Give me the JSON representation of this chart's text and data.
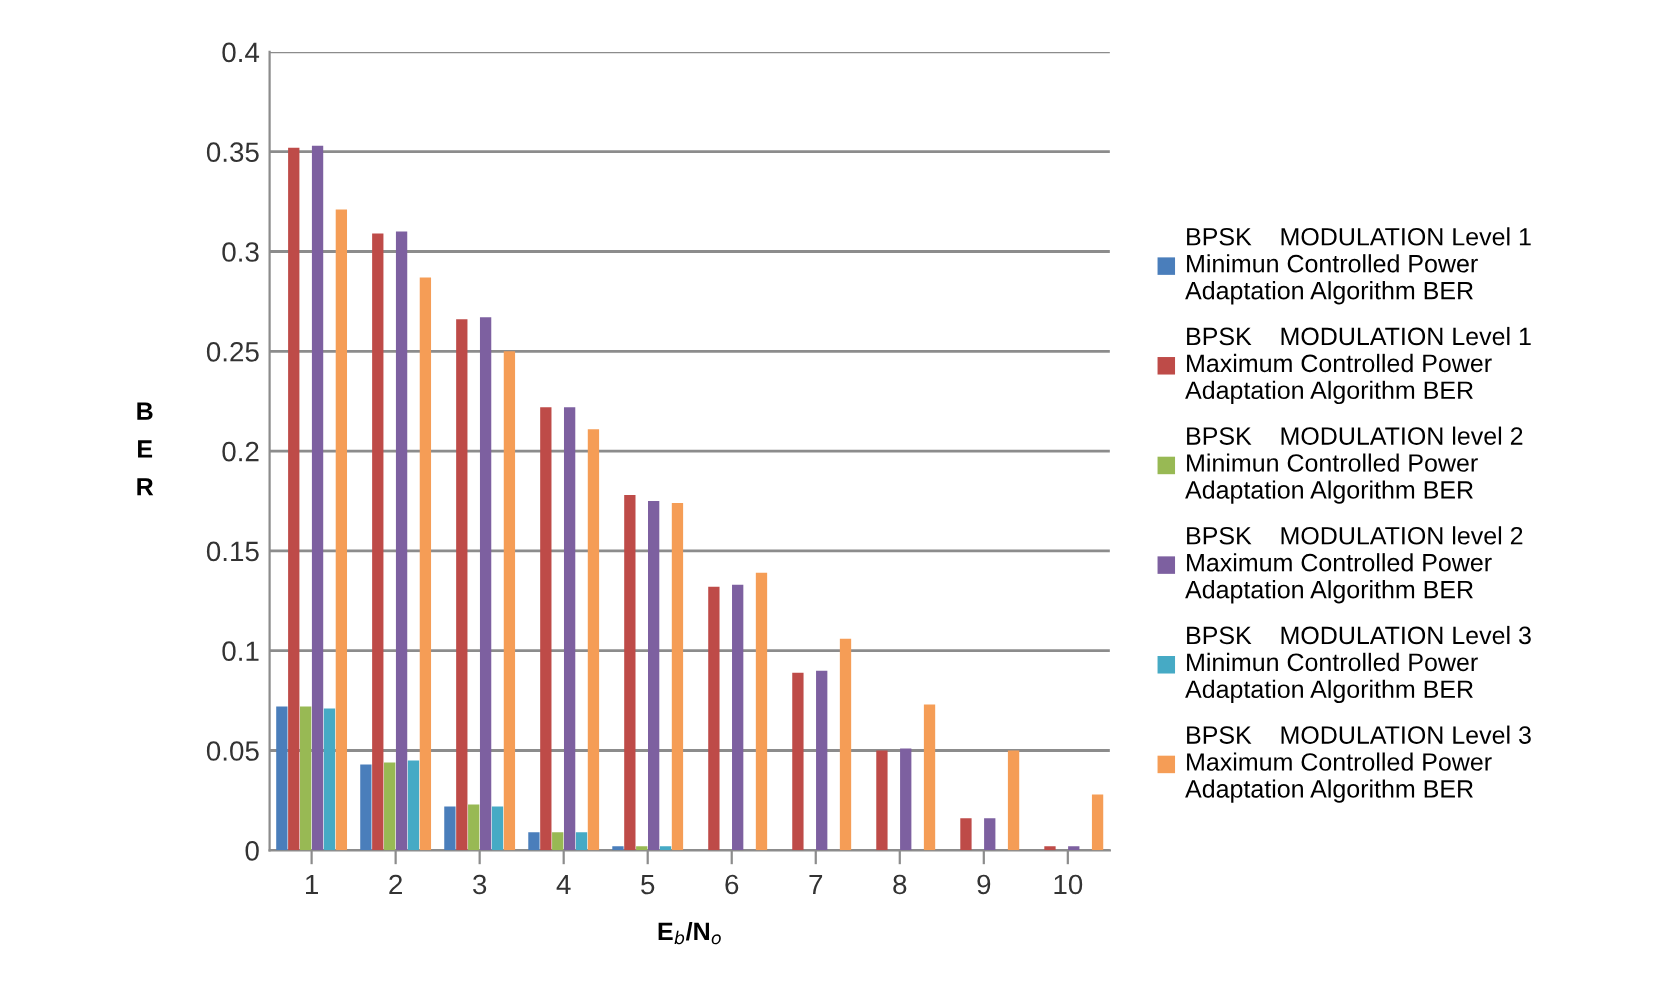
{
  "chart_data": {
    "type": "bar",
    "xlabel": "E$_{b}$/N$_{o}$",
    "ylabel": "B\nE\nR",
    "categories": [
      "1",
      "2",
      "3",
      "4",
      "5",
      "6",
      "7",
      "8",
      "9",
      "10"
    ],
    "series": [
      {
        "name": "BPSK    MODULATION Level 1\nMinimun Controlled Power\nAdaptation Algorithm BER",
        "color": "#4a7ebb",
        "values": [
          0.072,
          0.043,
          0.022,
          0.009,
          0.002,
          0,
          0,
          0,
          0,
          0
        ]
      },
      {
        "name": "BPSK    MODULATION Level 1\nMaximum Controlled Power\nAdaptation Algorithm BER",
        "color": "#be4b48",
        "values": [
          0.352,
          0.309,
          0.266,
          0.222,
          0.178,
          0.132,
          0.089,
          0.05,
          0.016,
          0.002
        ]
      },
      {
        "name": "BPSK    MODULATION level 2\nMinimun Controlled Power\nAdaptation Algorithm BER",
        "color": "#98b954",
        "values": [
          0.072,
          0.044,
          0.023,
          0.009,
          0.002,
          0,
          0,
          0,
          0,
          0
        ]
      },
      {
        "name": "BPSK    MODULATION level 2\nMaximum Controlled Power\nAdaptation Algorithm BER",
        "color": "#7d60a0",
        "values": [
          0.353,
          0.31,
          0.267,
          0.222,
          0.175,
          0.133,
          0.09,
          0.051,
          0.016,
          0.002
        ]
      },
      {
        "name": "BPSK    MODULATION Level 3\nMinimun Controlled Power\nAdaptation Algorithm BER",
        "color": "#46aac5",
        "values": [
          0.071,
          0.045,
          0.022,
          0.009,
          0.002,
          0,
          0,
          0,
          0,
          0
        ]
      },
      {
        "name": "BPSK    MODULATION Level 3\nMaximum Controlled Power\nAdaptation Algorithm BER",
        "color": "#f59d56",
        "values": [
          0.321,
          0.287,
          0.25,
          0.211,
          0.174,
          0.139,
          0.106,
          0.073,
          0.05,
          0.028
        ]
      }
    ],
    "ylim": [
      0,
      0.4
    ],
    "yticks": [
      {
        "value": 0,
        "label": "0"
      },
      {
        "value": 0.05,
        "label": "0.05"
      },
      {
        "value": 0.1,
        "label": "0.1"
      },
      {
        "value": 0.15,
        "label": "0.15"
      },
      {
        "value": 0.2,
        "label": "0.2"
      },
      {
        "value": 0.25,
        "label": "0.25"
      },
      {
        "value": 0.3,
        "label": "0.3"
      },
      {
        "value": 0.35,
        "label": "0.35"
      },
      {
        "value": 0.4,
        "label": "0.4"
      }
    ],
    "grid": "y",
    "legend": "right"
  }
}
